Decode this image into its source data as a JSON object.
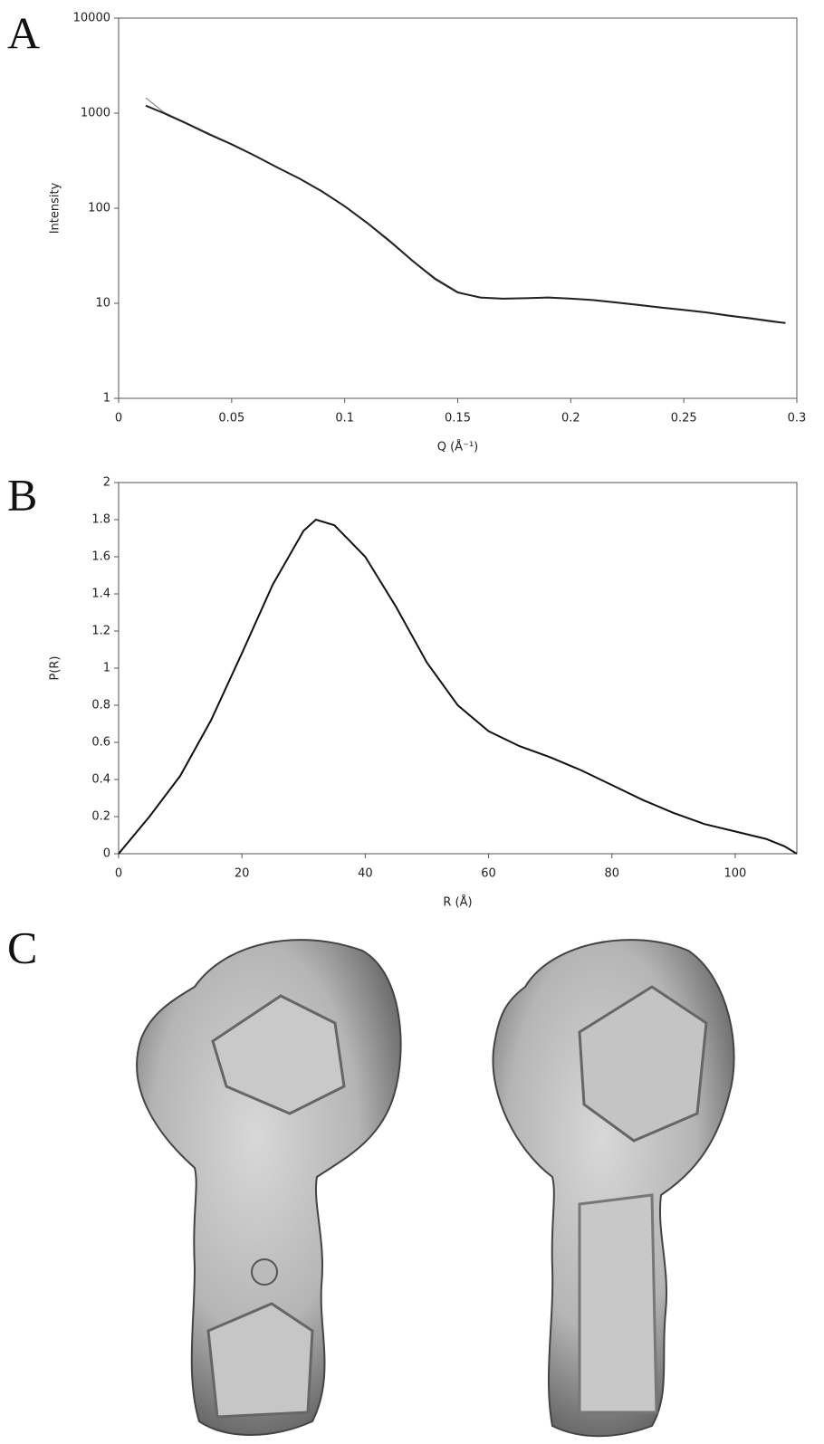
{
  "panel_labels": [
    "A",
    "B",
    "C"
  ],
  "chart_data": [
    {
      "type": "line",
      "log_y": true,
      "xlabel": "Q (Å⁻¹)",
      "ylabel": "Intensity",
      "xlim": [
        0,
        0.3
      ],
      "xticks": [
        0,
        0.05,
        0.1,
        0.15,
        0.2,
        0.25,
        0.3
      ],
      "ylim": [
        1,
        10000
      ],
      "yticks": [
        1,
        10,
        100,
        1000,
        10000
      ],
      "x": [
        0.012,
        0.02,
        0.03,
        0.04,
        0.05,
        0.06,
        0.07,
        0.08,
        0.09,
        0.1,
        0.11,
        0.12,
        0.13,
        0.14,
        0.15,
        0.16,
        0.17,
        0.18,
        0.19,
        0.2,
        0.21,
        0.22,
        0.23,
        0.24,
        0.25,
        0.26,
        0.27,
        0.28,
        0.29,
        0.295
      ],
      "series": [
        {
          "color": "#888888",
          "values": [
            1450,
            1020,
            790,
            610,
            475,
            360,
            272,
            205,
            150,
            104,
            69,
            44,
            28,
            18.5,
            13.2,
            11.4,
            11.1,
            11.3,
            11.6,
            11.3,
            10.9,
            10.3,
            9.7,
            9.1,
            8.6,
            8.1,
            7.5,
            7.0,
            6.5,
            6.2
          ]
        },
        {
          "color": "#222222",
          "values": [
            1200,
            1000,
            780,
            600,
            470,
            360,
            270,
            205,
            150,
            105,
            70,
            45,
            28,
            18,
            13,
            11.5,
            11.2,
            11.3,
            11.5,
            11.2,
            10.8,
            10.2,
            9.6,
            9.0,
            8.5,
            8.0,
            7.4,
            6.9,
            6.4,
            6.2
          ]
        }
      ]
    },
    {
      "type": "line",
      "log_y": false,
      "xlabel": "R (Å)",
      "ylabel": "P(R)",
      "xlim": [
        0,
        110
      ],
      "xticks": [
        0,
        20,
        40,
        60,
        80,
        100
      ],
      "ylim": [
        0,
        2
      ],
      "yticks": [
        0,
        0.2,
        0.4,
        0.6,
        0.8,
        1,
        1.2,
        1.4,
        1.6,
        1.8,
        2
      ],
      "x": [
        0,
        5,
        10,
        15,
        20,
        25,
        30,
        32,
        35,
        40,
        45,
        50,
        55,
        60,
        65,
        70,
        75,
        80,
        85,
        90,
        95,
        100,
        105,
        108,
        110
      ],
      "series": [
        {
          "color": "#111111",
          "values": [
            0,
            0.2,
            0.42,
            0.72,
            1.08,
            1.45,
            1.74,
            1.8,
            1.77,
            1.6,
            1.33,
            1.03,
            0.8,
            0.66,
            0.58,
            0.52,
            0.45,
            0.37,
            0.29,
            0.22,
            0.16,
            0.12,
            0.08,
            0.04,
            0
          ]
        }
      ]
    }
  ]
}
